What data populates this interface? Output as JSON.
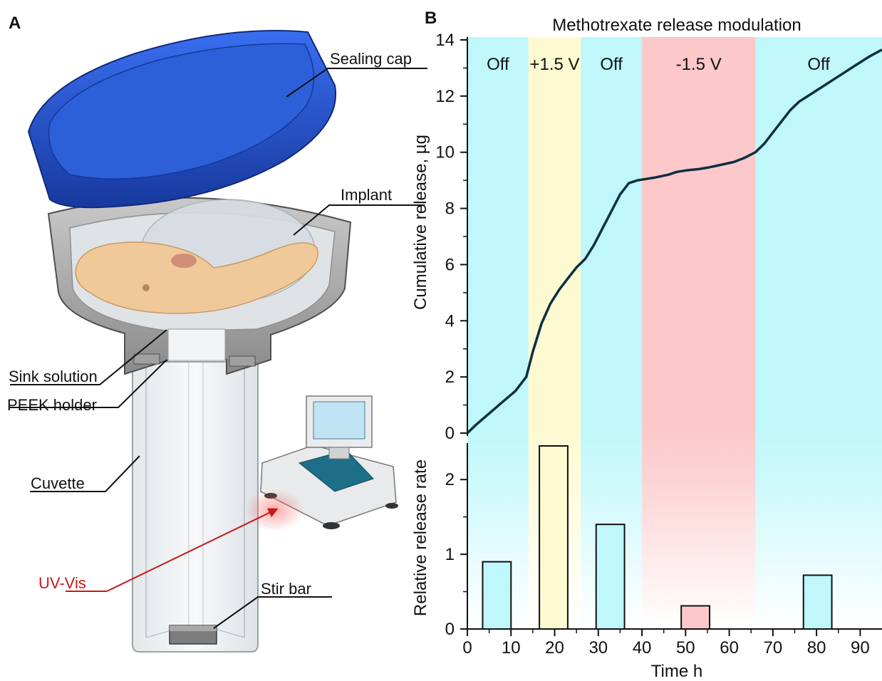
{
  "panel_a": {
    "letter": "A",
    "labels": {
      "sealing_cap": "Sealing cap",
      "implant": "Implant",
      "sink_solution": "Sink solution",
      "peek_holder": "PEEK holder",
      "cuvette": "Cuvette",
      "uv_vis": "UV-Vis",
      "stir_bar": "Stir bar"
    },
    "colors": {
      "cap": "#1f4fc8",
      "implant": "#f0c99a",
      "uv_arrow": "#c81818"
    }
  },
  "panel_b": {
    "letter": "B"
  },
  "chart_data": [
    {
      "type": "line",
      "title": "Methotrexate release modulation",
      "ylabel": "Cumulative release, µg",
      "xlabel": "",
      "xlim": [
        0,
        95
      ],
      "ylim": [
        0,
        14
      ],
      "y_ticks": [
        "0",
        "2",
        "4",
        "6",
        "8",
        "10",
        "12",
        "14"
      ],
      "phases": [
        {
          "label": "Off",
          "start": 0,
          "end": 14,
          "color": "#bff7fa"
        },
        {
          "label": "+1.5 V",
          "start": 14,
          "end": 26,
          "color": "#fdfad2"
        },
        {
          "label": "Off",
          "start": 26,
          "end": 40,
          "color": "#bff7fa"
        },
        {
          "label": "-1.5 V",
          "start": 40,
          "end": 66,
          "color": "#fcc8ca"
        },
        {
          "label": "Off",
          "start": 66,
          "end": 95,
          "color": "#bff7fa"
        }
      ],
      "line_color": "#0d2f44",
      "series": [
        {
          "x": [
            0,
            2,
            5,
            8,
            11,
            13.5,
            15,
            17,
            19,
            21,
            23,
            25,
            27,
            29,
            31,
            33,
            35,
            37,
            39,
            41,
            43,
            46,
            48,
            50,
            53,
            55,
            58,
            61,
            63.5,
            66,
            68,
            70,
            72,
            74,
            76,
            78,
            80,
            82,
            84,
            86,
            88,
            90,
            92,
            95
          ],
          "y": [
            0,
            0.3,
            0.7,
            1.1,
            1.5,
            2.0,
            2.9,
            3.9,
            4.6,
            5.1,
            5.5,
            5.9,
            6.2,
            6.7,
            7.3,
            7.9,
            8.5,
            8.9,
            9.0,
            9.05,
            9.1,
            9.2,
            9.3,
            9.35,
            9.4,
            9.45,
            9.55,
            9.65,
            9.8,
            10.0,
            10.3,
            10.7,
            11.1,
            11.5,
            11.8,
            12.0,
            12.2,
            12.4,
            12.6,
            12.8,
            13.0,
            13.2,
            13.4,
            13.65
          ]
        }
      ]
    },
    {
      "type": "bar",
      "ylabel": "Relative release rate",
      "xlabel": "Time h",
      "xlim": [
        0,
        95
      ],
      "ylim": [
        0,
        2.45
      ],
      "y_ticks": [
        "0",
        "1",
        "2"
      ],
      "x_ticks": [
        "0",
        "10",
        "20",
        "30",
        "40",
        "50",
        "60",
        "70",
        "80",
        "90"
      ],
      "bars": [
        {
          "x0": 3.5,
          "x1": 10,
          "value": 0.9,
          "color": "#bff7fa"
        },
        {
          "x0": 16.5,
          "x1": 23,
          "value": 2.45,
          "color": "#fdfad2"
        },
        {
          "x0": 29.5,
          "x1": 36,
          "value": 1.4,
          "color": "#bff7fa"
        },
        {
          "x0": 49,
          "x1": 55.5,
          "value": 0.31,
          "color": "#fcc8ca"
        },
        {
          "x0": 77,
          "x1": 83.5,
          "value": 0.72,
          "color": "#bff7fa"
        }
      ]
    }
  ]
}
